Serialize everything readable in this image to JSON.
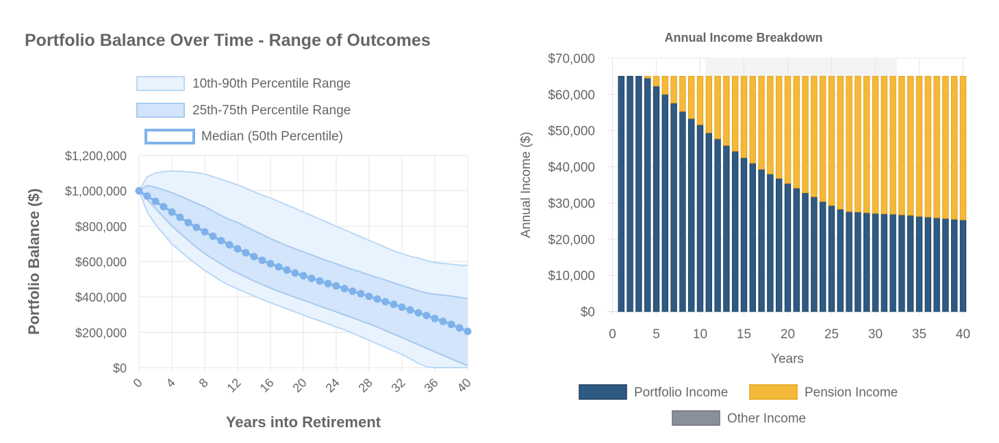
{
  "charts": [
    {
      "title": "Portfolio Balance Over Time - Range of Outcomes",
      "xlabel": "Years into Retirement",
      "ylabel": "Portfolio Balance ($)",
      "x_ticks": [
        "0",
        "4",
        "8",
        "12",
        "16",
        "20",
        "24",
        "28",
        "32",
        "36",
        "40"
      ],
      "y_ticks": [
        "$0",
        "$200,000",
        "$400,000",
        "$600,000",
        "$800,000",
        "$1,000,000",
        "$1,200,000"
      ],
      "legend": [
        {
          "label": "10th-90th Percentile Range"
        },
        {
          "label": "25th-75th Percentile Range"
        },
        {
          "label": "Median (50th Percentile)"
        }
      ]
    },
    {
      "title": "Annual Income Breakdown",
      "xlabel": "Years",
      "ylabel": "Annual Income ($)",
      "x_ticks": [
        "0",
        "5",
        "10",
        "15",
        "20",
        "25",
        "30",
        "35",
        "40"
      ],
      "y_ticks": [
        "$0",
        "$10,000",
        "$20,000",
        "$30,000",
        "$40,000",
        "$50,000",
        "$60,000",
        "$70,000"
      ],
      "legend": [
        {
          "label": "Portfolio Income"
        },
        {
          "label": "Pension Income"
        },
        {
          "label": "Other Income"
        }
      ]
    }
  ],
  "colors": {
    "band_outer_fill": "#e9f3fd",
    "band_outer_line": "#b9d8f6",
    "band_inner_fill": "#d2e5fa",
    "band_inner_line": "#a8c9ee",
    "median": "#7fb2ea",
    "portfolio": "#2e5a83",
    "pension": "#f5b93a",
    "other": "#8a9099"
  },
  "chart_data": [
    {
      "type": "area",
      "title": "Portfolio Balance Over Time - Range of Outcomes",
      "xlabel": "Years into Retirement",
      "ylabel": "Portfolio Balance ($)",
      "xlim": [
        0,
        40
      ],
      "ylim": [
        0,
        1200000
      ],
      "grid": true,
      "legend_position": "top",
      "x": [
        0,
        1,
        2,
        3,
        4,
        5,
        6,
        7,
        8,
        9,
        10,
        11,
        12,
        13,
        14,
        15,
        16,
        17,
        18,
        19,
        20,
        21,
        22,
        23,
        24,
        25,
        26,
        27,
        28,
        29,
        30,
        31,
        32,
        33,
        34,
        35,
        36,
        37,
        38,
        39,
        40
      ],
      "series": [
        {
          "name": "10th-90th Percentile Range",
          "role": "upper",
          "values": [
            1000000,
            1080000,
            1100000,
            1108000,
            1112000,
            1110000,
            1107000,
            1103000,
            1095000,
            1080000,
            1065000,
            1050000,
            1033000,
            1015000,
            995000,
            975000,
            960000,
            940000,
            920000,
            900000,
            880000,
            860000,
            840000,
            820000,
            800000,
            780000,
            760000,
            740000,
            720000,
            700000,
            680000,
            660000,
            645000,
            630000,
            620000,
            605000,
            595000,
            590000,
            585000,
            580000,
            578000
          ]
        },
        {
          "name": "10th-90th Percentile Range",
          "role": "lower",
          "values": [
            1000000,
            880000,
            810000,
            755000,
            700000,
            660000,
            620000,
            585000,
            550000,
            520000,
            490000,
            465000,
            445000,
            425000,
            405000,
            385000,
            368000,
            350000,
            333000,
            315000,
            298000,
            280000,
            265000,
            248000,
            230000,
            215000,
            195000,
            175000,
            155000,
            135000,
            115000,
            95000,
            75000,
            50000,
            25000,
            5000,
            0,
            0,
            0,
            0,
            0
          ]
        },
        {
          "name": "25th-75th Percentile Range",
          "role": "upper",
          "values": [
            1000000,
            1030000,
            1020000,
            1005000,
            990000,
            970000,
            950000,
            930000,
            910000,
            885000,
            860000,
            838000,
            820000,
            798000,
            775000,
            752000,
            730000,
            710000,
            690000,
            672000,
            655000,
            638000,
            620000,
            603000,
            588000,
            570000,
            555000,
            540000,
            525000,
            510000,
            495000,
            480000,
            465000,
            450000,
            435000,
            422000,
            415000,
            410000,
            405000,
            398000,
            390000
          ]
        },
        {
          "name": "25th-75th Percentile Range",
          "role": "lower",
          "values": [
            1000000,
            950000,
            900000,
            850000,
            800000,
            760000,
            720000,
            680000,
            645000,
            615000,
            585000,
            558000,
            535000,
            512000,
            490000,
            470000,
            450000,
            432000,
            415000,
            398000,
            382000,
            365000,
            348000,
            332000,
            315000,
            298000,
            282000,
            265000,
            248000,
            230000,
            210000,
            190000,
            170000,
            150000,
            130000,
            110000,
            90000,
            70000,
            50000,
            30000,
            10000
          ]
        },
        {
          "name": "Median (50th Percentile)",
          "role": "median",
          "values": [
            1000000,
            970000,
            940000,
            910000,
            880000,
            850000,
            820000,
            793000,
            768000,
            743000,
            718000,
            695000,
            672000,
            650000,
            628000,
            607000,
            588000,
            570000,
            552000,
            535000,
            520000,
            505000,
            490000,
            475000,
            462000,
            447000,
            432000,
            418000,
            403000,
            388000,
            373000,
            358000,
            342000,
            326000,
            310000,
            295000,
            278000,
            262000,
            245000,
            225000,
            205000
          ]
        }
      ]
    },
    {
      "type": "bar",
      "stacked": true,
      "title": "Annual Income Breakdown",
      "xlabel": "Years",
      "ylabel": "Annual Income ($)",
      "xlim": [
        0,
        40
      ],
      "ylim": [
        0,
        70000
      ],
      "legend_position": "bottom",
      "categories": [
        1,
        2,
        3,
        4,
        5,
        6,
        7,
        8,
        9,
        10,
        11,
        12,
        13,
        14,
        15,
        16,
        17,
        18,
        19,
        20,
        21,
        22,
        23,
        24,
        25,
        26,
        27,
        28,
        29,
        30,
        31,
        32,
        33,
        34,
        35,
        36,
        37,
        38,
        39,
        40
      ],
      "series": [
        {
          "name": "Portfolio Income",
          "values": [
            65000,
            65000,
            65000,
            64500,
            62300,
            60000,
            57600,
            55300,
            53300,
            51600,
            49400,
            47700,
            45900,
            44300,
            42500,
            41000,
            39300,
            38000,
            36800,
            35400,
            34100,
            32800,
            31700,
            30400,
            29300,
            28300,
            27600,
            27500,
            27300,
            27100,
            27000,
            26900,
            26700,
            26600,
            26300,
            26100,
            25900,
            25700,
            25500,
            25300
          ]
        },
        {
          "name": "Pension Income",
          "values": [
            0,
            0,
            0,
            500,
            2700,
            5000,
            7400,
            9700,
            11700,
            13400,
            15600,
            17300,
            19100,
            20700,
            22500,
            24000,
            25700,
            27000,
            28200,
            29600,
            30900,
            32200,
            33300,
            34600,
            35700,
            36700,
            37400,
            37500,
            37700,
            37900,
            38000,
            38100,
            38300,
            38400,
            38700,
            38900,
            39100,
            39300,
            39500,
            39700
          ]
        },
        {
          "name": "Other Income",
          "values": [
            0,
            0,
            0,
            0,
            0,
            0,
            0,
            0,
            0,
            0,
            0,
            0,
            0,
            0,
            0,
            0,
            0,
            0,
            0,
            0,
            0,
            0,
            0,
            0,
            0,
            0,
            0,
            0,
            0,
            0,
            0,
            0,
            0,
            0,
            0,
            0,
            0,
            0,
            0,
            0
          ]
        }
      ]
    }
  ]
}
